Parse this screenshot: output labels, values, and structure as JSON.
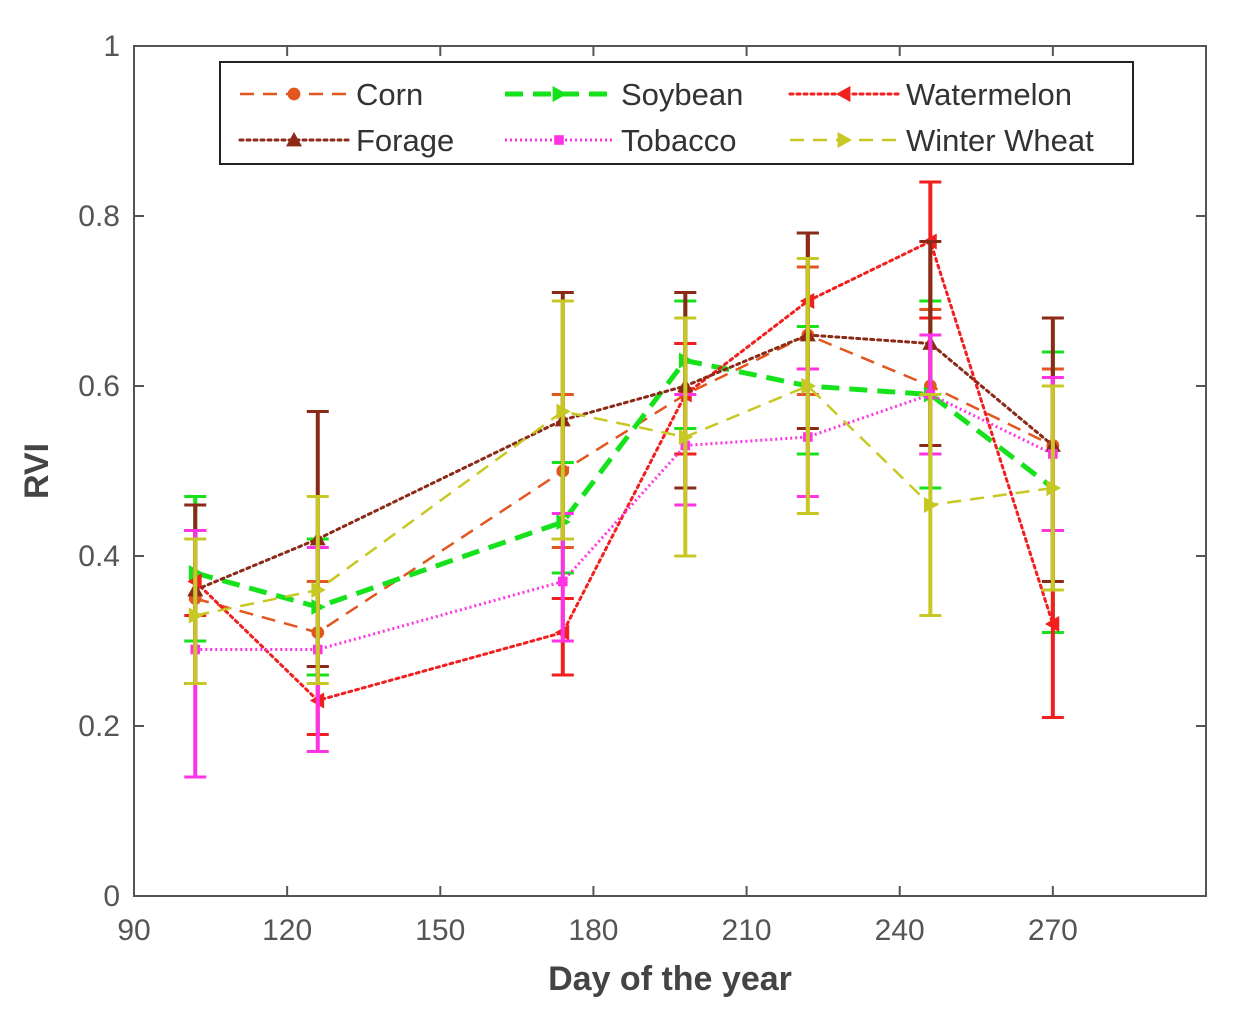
{
  "chart_data": {
    "type": "line",
    "title": "",
    "xlabel": "Day of the year",
    "ylabel": "RVI",
    "xlim": [
      90,
      300
    ],
    "ylim": [
      0,
      1
    ],
    "xticks": [
      90,
      120,
      150,
      180,
      210,
      240,
      270
    ],
    "yticks": [
      0,
      0.2,
      0.4,
      0.6,
      0.8,
      1
    ],
    "ytick_labels": [
      "0",
      "0.2",
      "0.4",
      "0.6",
      "0.8",
      "1"
    ],
    "grid": false,
    "error_bars": true,
    "legend_position": "top",
    "x": [
      102,
      126,
      174,
      198,
      222,
      246,
      270
    ],
    "series": [
      {
        "name": "Corn",
        "color": "#e2561f",
        "dash": "dashed",
        "marker": "circle",
        "values": [
          0.35,
          0.31,
          0.5,
          0.59,
          0.66,
          0.6,
          0.53
        ],
        "err_low": [
          0.25,
          0.26,
          0.41,
          0.52,
          0.59,
          0.52,
          0.43
        ],
        "err_high": [
          0.43,
          0.37,
          0.59,
          0.65,
          0.74,
          0.69,
          0.62
        ]
      },
      {
        "name": "Soybean",
        "color": "#15e21b",
        "dash": "dashed-bold",
        "marker": "triangle-right",
        "values": [
          0.38,
          0.34,
          0.44,
          0.63,
          0.6,
          0.59,
          0.48
        ],
        "err_low": [
          0.3,
          0.26,
          0.38,
          0.55,
          0.52,
          0.48,
          0.31
        ],
        "err_high": [
          0.47,
          0.42,
          0.51,
          0.7,
          0.67,
          0.7,
          0.64
        ]
      },
      {
        "name": "Watermelon",
        "color": "#f21f1f",
        "dash": "dotted",
        "marker": "triangle-left",
        "values": [
          0.37,
          0.23,
          0.31,
          0.59,
          0.7,
          0.77,
          0.32
        ],
        "err_low": [
          0.33,
          0.19,
          0.26,
          0.52,
          0.62,
          0.68,
          0.21
        ],
        "err_high": [
          0.43,
          0.27,
          0.35,
          0.65,
          0.78,
          0.84,
          0.43
        ]
      },
      {
        "name": "Forage",
        "color": "#8b2a16",
        "dash": "dotted",
        "marker": "triangle-up",
        "values": [
          0.36,
          0.42,
          0.56,
          0.6,
          0.66,
          0.65,
          0.53
        ],
        "err_low": [
          0.25,
          0.27,
          0.42,
          0.48,
          0.55,
          0.53,
          0.37
        ],
        "err_high": [
          0.46,
          0.57,
          0.71,
          0.71,
          0.78,
          0.77,
          0.68
        ]
      },
      {
        "name": "Tobacco",
        "color": "#ff33e6",
        "dash": "dotted-fine",
        "marker": "square",
        "values": [
          0.29,
          0.29,
          0.37,
          0.53,
          0.54,
          0.59,
          0.52
        ],
        "err_low": [
          0.14,
          0.17,
          0.3,
          0.46,
          0.47,
          0.52,
          0.43
        ],
        "err_high": [
          0.43,
          0.41,
          0.45,
          0.59,
          0.62,
          0.66,
          0.61
        ]
      },
      {
        "name": "Winter Wheat",
        "color": "#c8c824",
        "dash": "dashed",
        "marker": "triangle-right",
        "values": [
          0.33,
          0.36,
          0.57,
          0.54,
          0.6,
          0.46,
          0.48
        ],
        "err_low": [
          0.25,
          0.25,
          0.42,
          0.4,
          0.45,
          0.33,
          0.36
        ],
        "err_high": [
          0.42,
          0.47,
          0.7,
          0.68,
          0.75,
          0.59,
          0.6
        ]
      }
    ]
  }
}
